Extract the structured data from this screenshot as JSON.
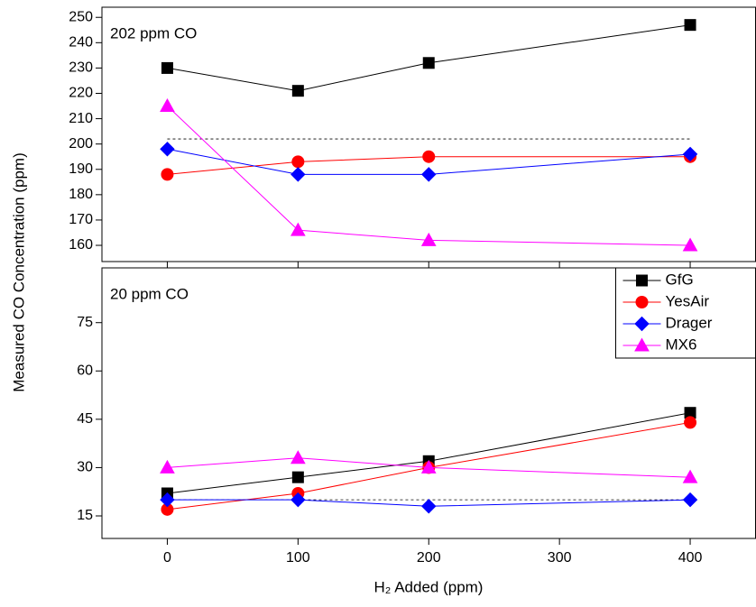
{
  "xlabel": "H₂ Added (ppm)",
  "ylabel": "Measured CO Concentration (ppm)",
  "xlim": [
    -50,
    450
  ],
  "xticks": [
    0,
    100,
    200,
    300,
    400
  ],
  "chart_data": [
    {
      "type": "line",
      "annotation": "202 ppm CO",
      "reference_line": 202,
      "x": [
        0,
        100,
        200,
        400
      ],
      "ylim": [
        153.6,
        254
      ],
      "yticks": [
        160,
        170,
        180,
        190,
        200,
        210,
        220,
        230,
        240,
        250
      ],
      "series": [
        {
          "name": "GfG",
          "color": "#000000",
          "marker": "square",
          "values": [
            230,
            221,
            232,
            247
          ]
        },
        {
          "name": "YesAir",
          "color": "#ff0000",
          "marker": "circle",
          "values": [
            188,
            193,
            195,
            195
          ]
        },
        {
          "name": "Drager",
          "color": "#0000ff",
          "marker": "diamond",
          "values": [
            198,
            188,
            188,
            196
          ]
        },
        {
          "name": "MX6",
          "color": "#ff00ff",
          "marker": "triangle",
          "values": [
            215,
            166,
            162,
            160
          ]
        }
      ]
    },
    {
      "type": "line",
      "annotation": "20 ppm CO",
      "reference_line": 20,
      "legend": "upper right",
      "x": [
        0,
        100,
        200,
        400
      ],
      "ylim": [
        8,
        92
      ],
      "yticks": [
        15,
        30,
        45,
        60,
        75
      ],
      "series": [
        {
          "name": "GfG",
          "color": "#000000",
          "marker": "square",
          "values": [
            22,
            27,
            32,
            47
          ]
        },
        {
          "name": "YesAir",
          "color": "#ff0000",
          "marker": "circle",
          "values": [
            17,
            22,
            30,
            44
          ]
        },
        {
          "name": "Drager",
          "color": "#0000ff",
          "marker": "diamond",
          "values": [
            20,
            20,
            18,
            20
          ]
        },
        {
          "name": "MX6",
          "color": "#ff00ff",
          "marker": "triangle",
          "values": [
            30,
            33,
            30,
            27
          ]
        }
      ]
    }
  ]
}
